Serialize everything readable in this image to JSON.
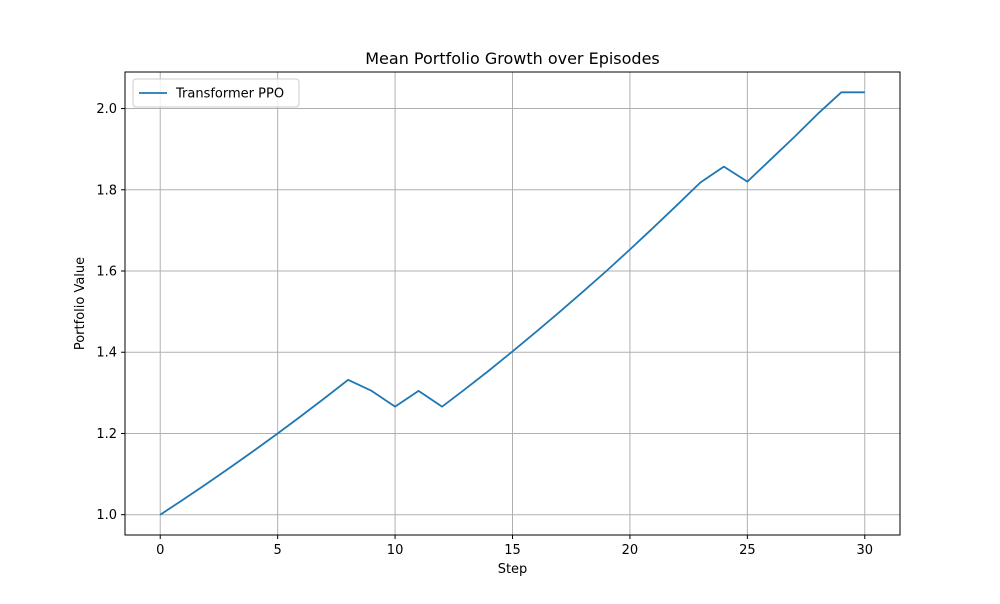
{
  "chart_data": {
    "type": "line",
    "title": "Mean Portfolio Growth over Episodes",
    "xlabel": "Step",
    "ylabel": "Portfolio Value",
    "xlim": [
      -1.5,
      31.5
    ],
    "ylim": [
      0.95,
      2.09
    ],
    "xticks": [
      0,
      5,
      10,
      15,
      20,
      25,
      30
    ],
    "xtick_labels": [
      "0",
      "5",
      "10",
      "15",
      "20",
      "25",
      "30"
    ],
    "yticks": [
      1.0,
      1.2,
      1.4,
      1.6,
      1.8,
      2.0
    ],
    "ytick_labels": [
      "1.0",
      "1.2",
      "1.4",
      "1.6",
      "1.8",
      "2.0"
    ],
    "grid": true,
    "legend": "top-left",
    "series": [
      {
        "name": "Transformer PPO",
        "color": "#1f77b4",
        "x": [
          0,
          1,
          2,
          3,
          4,
          5,
          6,
          7,
          8,
          9,
          10,
          11,
          12,
          13,
          14,
          15,
          16,
          17,
          18,
          19,
          20,
          21,
          22,
          23,
          24,
          25,
          26,
          27,
          28,
          29,
          30
        ],
        "y": [
          1.0,
          1.038,
          1.077,
          1.117,
          1.158,
          1.2,
          1.243,
          1.287,
          1.332,
          1.305,
          1.266,
          1.305,
          1.266,
          1.31,
          1.355,
          1.402,
          1.45,
          1.499,
          1.549,
          1.6,
          1.653,
          1.707,
          1.762,
          1.818,
          1.857,
          1.82,
          1.875,
          1.93,
          1.987,
          2.04,
          2.04
        ]
      }
    ]
  }
}
